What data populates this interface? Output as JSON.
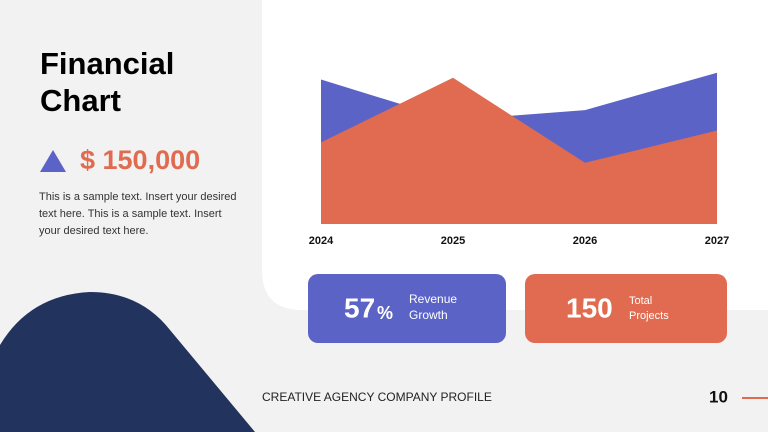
{
  "slide": {
    "title_line1": "Financial",
    "title_line2": "Chart",
    "amount": "$ 150,000",
    "paragraph": "This is a sample text. Insert your desired text here. This is a sample text. Insert your desired text here.",
    "stats": [
      {
        "value": "57",
        "unit": "%",
        "label_line1": "Revenue",
        "label_line2": "Growth"
      },
      {
        "value": "150",
        "label_line1": "Total",
        "label_line2": "Projects"
      }
    ],
    "footer": "CREATIVE AGENCY COMPANY PROFILE",
    "page_number": "10"
  },
  "chart_data": {
    "type": "area",
    "categories": [
      "2024",
      "2025",
      "2026",
      "2027"
    ],
    "series": [
      {
        "color": "#5b63c6",
        "values": [
          85,
          61,
          67,
          89
        ]
      },
      {
        "color": "#e06b50",
        "values": [
          48,
          86,
          36,
          55
        ]
      }
    ],
    "ylim": [
      0,
      100
    ]
  }
}
